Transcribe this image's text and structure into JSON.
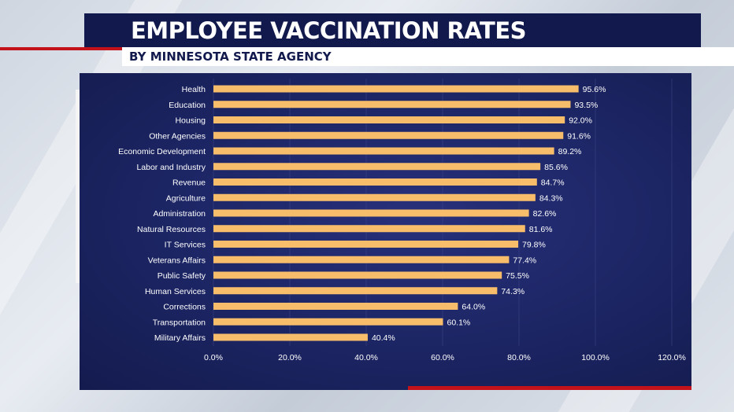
{
  "header": {
    "title": "EMPLOYEE VACCINATION RATES",
    "subtitle": "BY MINNESOTA STATE AGENCY"
  },
  "colors": {
    "title_bar": "#121a4d",
    "accent_red": "#c4121a",
    "chart_bg": "#1c2563",
    "bar": "#f7bd6a"
  },
  "chart_data": {
    "type": "bar",
    "orientation": "horizontal",
    "categories": [
      "Health",
      "Education",
      "Housing",
      "Other Agencies",
      "Economic Development",
      "Labor and Industry",
      "Revenue",
      "Agriculture",
      "Administration",
      "Natural Resources",
      "IT Services",
      "Veterans Affairs",
      "Public Safety",
      "Human Services",
      "Corrections",
      "Transportation",
      "Military Affairs"
    ],
    "values": [
      95.6,
      93.5,
      92.0,
      91.6,
      89.2,
      85.6,
      84.7,
      84.3,
      82.6,
      81.6,
      79.8,
      77.4,
      75.5,
      74.3,
      64.0,
      60.1,
      40.4
    ],
    "value_labels": [
      "95.6%",
      "93.5%",
      "92.0%",
      "91.6%",
      "89.2%",
      "85.6%",
      "84.7%",
      "84.3%",
      "82.6%",
      "81.6%",
      "79.8%",
      "77.4%",
      "75.5%",
      "74.3%",
      "64.0%",
      "60.1%",
      "40.4%"
    ],
    "xlim": [
      0,
      120
    ],
    "x_ticks": [
      0,
      20,
      40,
      60,
      80,
      100,
      120
    ],
    "x_tick_labels": [
      "0.0%",
      "20.0%",
      "40.0%",
      "60.0%",
      "80.0%",
      "100.0%",
      "120.0%"
    ],
    "grid": true,
    "legend": "none"
  }
}
